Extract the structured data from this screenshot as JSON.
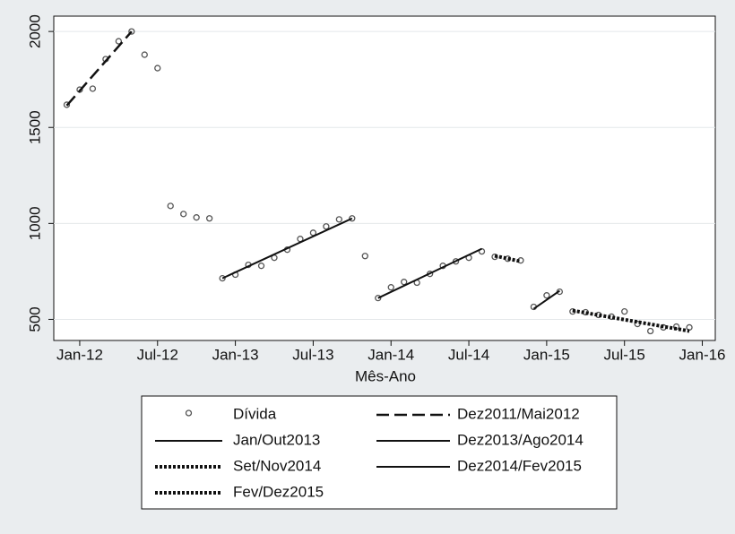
{
  "chart_data": {
    "type": "scatter",
    "x_label": "Mês-Ano",
    "xlim": [
      "2011-11",
      "2016-02"
    ],
    "xticks": [
      {
        "value": "2012-01",
        "label": "Jan-12"
      },
      {
        "value": "2012-07",
        "label": "Jul-12"
      },
      {
        "value": "2013-01",
        "label": "Jan-13"
      },
      {
        "value": "2013-07",
        "label": "Jul-13"
      },
      {
        "value": "2014-01",
        "label": "Jan-14"
      },
      {
        "value": "2014-07",
        "label": "Jul-14"
      },
      {
        "value": "2015-01",
        "label": "Jan-15"
      },
      {
        "value": "2015-07",
        "label": "Jul-15"
      },
      {
        "value": "2016-01",
        "label": "Jan-16"
      }
    ],
    "ylim": [
      390,
      2080
    ],
    "yticks": [
      500,
      1000,
      1500,
      2000
    ],
    "grid": true,
    "legend": "bottom",
    "series": [
      {
        "name": "Dívida",
        "type": "scatter",
        "color": "#555555",
        "x": [
          "2011-12",
          "2012-01",
          "2012-02",
          "2012-03",
          "2012-04",
          "2012-05",
          "2012-06",
          "2012-07",
          "2012-08",
          "2012-09",
          "2012-10",
          "2012-11",
          "2012-12",
          "2013-01",
          "2013-02",
          "2013-03",
          "2013-04",
          "2013-05",
          "2013-06",
          "2013-07",
          "2013-08",
          "2013-09",
          "2013-10",
          "2013-11",
          "2013-12",
          "2014-01",
          "2014-02",
          "2014-03",
          "2014-04",
          "2014-05",
          "2014-06",
          "2014-07",
          "2014-08",
          "2014-09",
          "2014-10",
          "2014-11",
          "2014-12",
          "2015-01",
          "2015-02",
          "2015-03",
          "2015-04",
          "2015-05",
          "2015-06",
          "2015-07",
          "2015-08",
          "2015-09",
          "2015-10",
          "2015-11",
          "2015-12"
        ],
        "values": [
          1618,
          1697,
          1702,
          1856,
          1949,
          2000,
          1879,
          1809,
          1091,
          1049,
          1031,
          1026,
          714,
          733,
          784,
          779,
          821,
          863,
          919,
          951,
          984,
          1021,
          1026,
          830,
          611,
          667,
          695,
          691,
          737,
          779,
          802,
          821,
          854,
          826,
          816,
          807,
          565,
          625,
          644,
          541,
          537,
          523,
          514,
          541,
          476,
          439,
          458,
          462,
          458
        ]
      },
      {
        "name": "Dez2011/Mai2012",
        "type": "line",
        "dash": "dashed",
        "color": "#111111",
        "x": [
          "2011-12",
          "2012-05"
        ],
        "values": [
          1614,
          2000
        ]
      },
      {
        "name": "Jan/Out2013",
        "type": "line",
        "dash": "solid",
        "color": "#111111",
        "x": [
          "2012-12",
          "2013-10"
        ],
        "values": [
          714,
          1026
        ]
      },
      {
        "name": "Dez2013/Ago2014",
        "type": "line",
        "dash": "solid",
        "color": "#111111",
        "x": [
          "2013-12",
          "2014-08"
        ],
        "values": [
          611,
          868
        ]
      },
      {
        "name": "Set/Nov2014",
        "type": "line",
        "dash": "dotted",
        "color": "#111111",
        "x": [
          "2014-09",
          "2014-11"
        ],
        "values": [
          831,
          802
        ]
      },
      {
        "name": "Dez2014/Fev2015",
        "type": "line",
        "dash": "solid",
        "color": "#111111",
        "x": [
          "2014-12",
          "2015-02"
        ],
        "values": [
          555,
          649
        ]
      },
      {
        "name": "Fev/Dez2015",
        "type": "line",
        "dash": "dotted",
        "color": "#111111",
        "x": [
          "2015-03",
          "2015-12"
        ],
        "values": [
          546,
          439
        ]
      }
    ]
  }
}
